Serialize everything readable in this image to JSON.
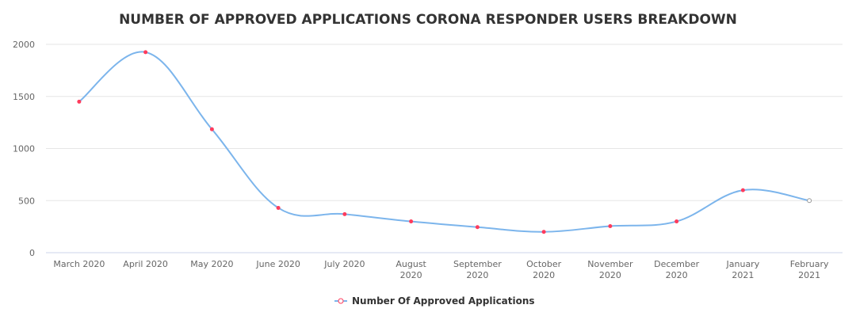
{
  "chart_data": {
    "type": "line",
    "title": "NUMBER OF APPROVED APPLICATIONS CORONA RESPONDER USERS BREAKDOWN",
    "xlabel": "",
    "ylabel": "",
    "categories": [
      "March 2020",
      "April 2020",
      "May 2020",
      "June 2020",
      "July 2020",
      "August 2020",
      "September 2020",
      "October 2020",
      "November 2020",
      "December 2020",
      "January 2021",
      "February 2021"
    ],
    "series": [
      {
        "name": "Number Of Approved Applications",
        "values": [
          1450,
          1925,
          1185,
          430,
          370,
          300,
          245,
          200,
          255,
          300,
          600,
          500
        ],
        "color": "#7cb5ec",
        "marker_color": "#ff3b5c"
      }
    ],
    "ylim": [
      0,
      2000
    ],
    "yticks": [
      0,
      500,
      1000,
      1500,
      2000
    ],
    "grid": true,
    "legend_position": "bottom-center"
  }
}
